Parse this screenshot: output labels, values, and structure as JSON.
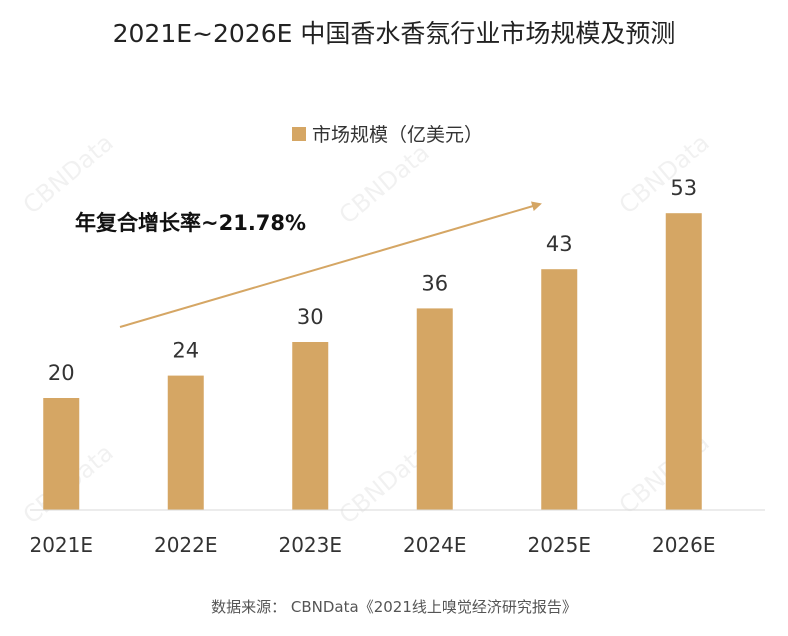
{
  "chart_data": {
    "type": "bar",
    "title": "2021E~2026E 中国香水香氛行业市场规模及预测",
    "categories": [
      "2021E",
      "2022E",
      "2023E",
      "2024E",
      "2025E",
      "2026E"
    ],
    "series": [
      {
        "name": "市场规模（亿美元）",
        "values": [
          20,
          24,
          30,
          36,
          43,
          53
        ],
        "color": "#D5A664"
      }
    ],
    "ylim": [
      0,
      60
    ],
    "grid": false,
    "legend_position": "top-center",
    "annotation": {
      "text": "年复合增长率~21.78%",
      "arrow_color": "#D5A664"
    },
    "source": "数据来源： CBNData《2021线上嗅觉经济研究报告》"
  },
  "watermark": {
    "text": "CBNData"
  }
}
